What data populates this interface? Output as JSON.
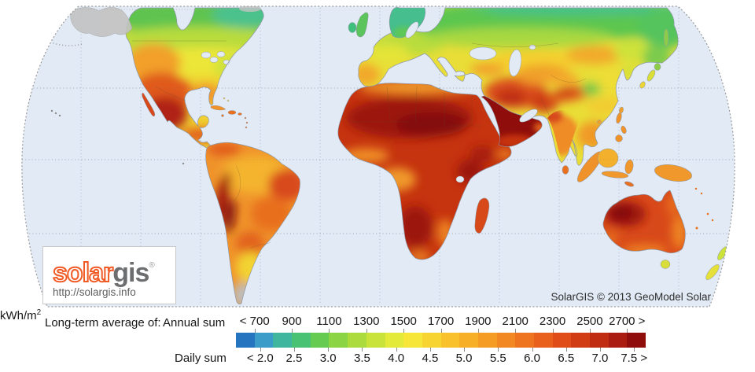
{
  "map": {
    "attribution": "SolarGIS © 2013 GeoModel Solar",
    "logo": {
      "brand_part1": "solar",
      "brand_part2": "gis",
      "registered": "®",
      "url": "http://solargis.info",
      "brand_color": "#f15a24",
      "brand_gray": "#6d6e70"
    }
  },
  "legend": {
    "prefix_label": "Long-term average of:",
    "annual_label": "Annual sum",
    "daily_label": "Daily sum",
    "unit": "kWh/m",
    "unit_exponent": "2",
    "scale": {
      "annual_min": 600,
      "annual_max": 2800,
      "daily_to_annual_factor": 365
    },
    "annual_ticks": [
      {
        "label": "< 700",
        "value": 700
      },
      {
        "label": "900",
        "value": 900
      },
      {
        "label": "1100",
        "value": 1100
      },
      {
        "label": "1300",
        "value": 1300
      },
      {
        "label": "1500",
        "value": 1500
      },
      {
        "label": "1700",
        "value": 1700
      },
      {
        "label": "1900",
        "value": 1900
      },
      {
        "label": "2100",
        "value": 2100
      },
      {
        "label": "2300",
        "value": 2300
      },
      {
        "label": "2500",
        "value": 2500
      },
      {
        "label": "2700 >",
        "value": 2700
      }
    ],
    "daily_ticks": [
      {
        "label": "< 2.0",
        "value": 2.0
      },
      {
        "label": "2.5",
        "value": 2.5
      },
      {
        "label": "3.0",
        "value": 3.0
      },
      {
        "label": "3.5",
        "value": 3.5
      },
      {
        "label": "4.0",
        "value": 4.0
      },
      {
        "label": "4.5",
        "value": 4.5
      },
      {
        "label": "5.0",
        "value": 5.0
      },
      {
        "label": "5.5",
        "value": 5.5
      },
      {
        "label": "6.0",
        "value": 6.0
      },
      {
        "label": "6.5",
        "value": 6.5
      },
      {
        "label": "7.0",
        "value": 7.0
      },
      {
        "label": "7.5 >",
        "value": 7.5
      }
    ],
    "colorbar_colors": [
      "#2474c0",
      "#3b9bc9",
      "#40b69e",
      "#4ac273",
      "#66cc51",
      "#8bd443",
      "#abdb3c",
      "#c9e33a",
      "#e4ea39",
      "#f5e637",
      "#f8d430",
      "#f9c22c",
      "#f7af28",
      "#f59c25",
      "#f28822",
      "#ee741f",
      "#e8601c",
      "#e04d18",
      "#d23c15",
      "#c02c12",
      "#aa1c0f",
      "#8f0e0b"
    ]
  }
}
